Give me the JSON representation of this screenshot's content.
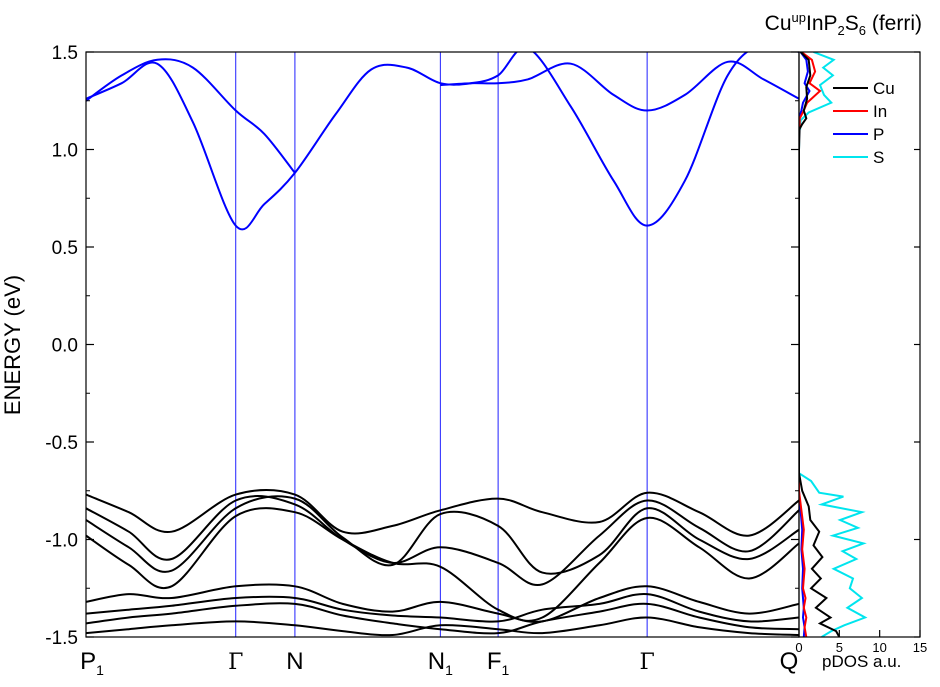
{
  "chart_data": [
    {
      "type": "line",
      "title_parts": {
        "pre": "Cu",
        "sup": "up",
        "mid": "InP",
        "sub1": "2",
        "mid2": "S",
        "sub2": "6",
        "post": " (ferri)"
      },
      "xlabel": "",
      "ylabel": "ENERGY (eV)",
      "ylim": [
        -1.5,
        1.5
      ],
      "yticks": [
        -1.5,
        -1.0,
        -0.5,
        0.0,
        0.5,
        1.0,
        1.5
      ],
      "ytick_labels": [
        "-1.5",
        "-1.0",
        "-0.5",
        "0.0",
        "0.5",
        "1.0",
        "1.5"
      ],
      "k_labels": [
        {
          "main": "P",
          "sub": "1",
          "pos": 0.0,
          "greek": false
        },
        {
          "main": "Γ",
          "sub": "",
          "pos": 0.21,
          "greek": true
        },
        {
          "main": "N",
          "sub": "",
          "pos": 0.293,
          "greek": false
        },
        {
          "main": "N",
          "sub": "1",
          "pos": 0.497,
          "greek": false
        },
        {
          "main": "F",
          "sub": "1",
          "pos": 0.578,
          "greek": false
        },
        {
          "main": "Γ",
          "sub": "",
          "pos": 0.787,
          "greek": true
        },
        {
          "main": "Q",
          "sub": "",
          "pos": 1.0,
          "greek": false
        }
      ],
      "conduction_band_color": "#0000ff",
      "valence_band_color": "#000000",
      "series": [
        {
          "band": "conduction",
          "x": [
            0.0,
            0.05,
            0.1,
            0.15,
            0.21,
            0.25,
            0.293,
            0.35,
            0.4,
            0.45,
            0.497,
            0.54,
            0.578,
            0.62,
            0.68,
            0.74,
            0.787,
            0.84,
            0.9,
            0.95,
            1.0
          ],
          "y": [
            1.26,
            1.34,
            1.44,
            1.14,
            0.61,
            0.72,
            0.88,
            1.18,
            1.41,
            1.42,
            1.34,
            1.34,
            1.38,
            1.52,
            1.22,
            0.84,
            0.61,
            0.84,
            1.38,
            1.54,
            1.5
          ]
        },
        {
          "band": "conduction",
          "x": [
            0.0,
            0.05,
            0.1,
            0.15,
            0.21,
            0.25,
            0.293
          ],
          "y": [
            1.25,
            1.38,
            1.46,
            1.42,
            1.2,
            1.08,
            0.88
          ]
        },
        {
          "band": "conduction",
          "x": [
            0.497,
            0.54,
            0.578,
            0.62,
            0.68,
            0.74,
            0.787,
            0.84,
            0.9,
            0.95,
            1.0
          ],
          "y": [
            1.33,
            1.34,
            1.34,
            1.36,
            1.44,
            1.28,
            1.2,
            1.28,
            1.45,
            1.36,
            1.26
          ]
        },
        {
          "band": "valence",
          "x": [
            0.0,
            0.06,
            0.12,
            0.21,
            0.293,
            0.36,
            0.43,
            0.497,
            0.578,
            0.64,
            0.72,
            0.787,
            0.86,
            0.93,
            1.0
          ],
          "y": [
            -0.77,
            -0.86,
            -0.96,
            -0.77,
            -0.77,
            -0.96,
            -0.93,
            -0.85,
            -0.79,
            -0.86,
            -0.91,
            -0.76,
            -0.86,
            -0.98,
            -0.8
          ]
        },
        {
          "band": "valence",
          "x": [
            0.0,
            0.06,
            0.12,
            0.21,
            0.293,
            0.36,
            0.43,
            0.497,
            0.578,
            0.64,
            0.72,
            0.787,
            0.86,
            0.93,
            1.0
          ],
          "y": [
            -0.84,
            -0.96,
            -1.1,
            -0.8,
            -0.82,
            -1.0,
            -1.12,
            -1.04,
            -1.12,
            -1.23,
            -0.98,
            -0.8,
            -0.94,
            -1.06,
            -0.85
          ]
        },
        {
          "band": "valence",
          "x": [
            0.0,
            0.06,
            0.12,
            0.21,
            0.293,
            0.36,
            0.43,
            0.497,
            0.578,
            0.64,
            0.72,
            0.787,
            0.86,
            0.93,
            1.0
          ],
          "y": [
            -0.9,
            -1.04,
            -1.16,
            -0.84,
            -0.79,
            -0.99,
            -1.13,
            -0.87,
            -0.93,
            -1.17,
            -1.08,
            -0.84,
            -1.0,
            -1.1,
            -0.95
          ]
        },
        {
          "band": "valence",
          "x": [
            0.0,
            0.06,
            0.12,
            0.21,
            0.293,
            0.36,
            0.43,
            0.497,
            0.578,
            0.64,
            0.72,
            0.787,
            0.86,
            0.93,
            1.0
          ],
          "y": [
            -0.98,
            -1.13,
            -1.24,
            -0.88,
            -0.86,
            -1.0,
            -1.12,
            -1.14,
            -1.36,
            -1.4,
            -1.12,
            -0.89,
            -1.04,
            -1.2,
            -1.02
          ]
        },
        {
          "band": "valence",
          "x": [
            0.0,
            0.06,
            0.12,
            0.21,
            0.293,
            0.36,
            0.43,
            0.497,
            0.578,
            0.64,
            0.72,
            0.787,
            0.86,
            0.93,
            1.0
          ],
          "y": [
            -1.32,
            -1.28,
            -1.3,
            -1.24,
            -1.24,
            -1.33,
            -1.37,
            -1.32,
            -1.38,
            -1.42,
            -1.3,
            -1.24,
            -1.32,
            -1.38,
            -1.33
          ]
        },
        {
          "band": "valence",
          "x": [
            0.0,
            0.06,
            0.12,
            0.21,
            0.293,
            0.36,
            0.43,
            0.497,
            0.578,
            0.64,
            0.72,
            0.787,
            0.86,
            0.93,
            1.0
          ],
          "y": [
            -1.38,
            -1.36,
            -1.34,
            -1.3,
            -1.3,
            -1.36,
            -1.39,
            -1.4,
            -1.42,
            -1.36,
            -1.33,
            -1.28,
            -1.37,
            -1.42,
            -1.4
          ]
        },
        {
          "band": "valence",
          "x": [
            0.0,
            0.06,
            0.12,
            0.21,
            0.293,
            0.36,
            0.43,
            0.497,
            0.578,
            0.64,
            0.72,
            0.787,
            0.86,
            0.93,
            1.0
          ],
          "y": [
            -1.43,
            -1.4,
            -1.38,
            -1.34,
            -1.33,
            -1.39,
            -1.43,
            -1.46,
            -1.48,
            -1.42,
            -1.37,
            -1.33,
            -1.4,
            -1.45,
            -1.46
          ]
        },
        {
          "band": "valence",
          "x": [
            0.0,
            0.06,
            0.12,
            0.21,
            0.293,
            0.36,
            0.43,
            0.497,
            0.578,
            0.64,
            0.72,
            0.787,
            0.86,
            0.93,
            1.0
          ],
          "y": [
            -1.48,
            -1.46,
            -1.44,
            -1.42,
            -1.44,
            -1.47,
            -1.49,
            -1.44,
            -1.46,
            -1.48,
            -1.44,
            -1.4,
            -1.45,
            -1.48,
            -1.49
          ]
        }
      ]
    },
    {
      "type": "line",
      "xlabel": "pDOS a.u.",
      "xlim": [
        0,
        15
      ],
      "xticks": [
        0,
        5,
        10,
        15
      ],
      "xtick_labels": [
        "0",
        "5",
        "10",
        "15"
      ],
      "ylim": [
        -1.5,
        1.5
      ],
      "legend_placement": "top-right",
      "series": [
        {
          "name": "Cu",
          "color": "#000000",
          "x": [
            0.2,
            1.2,
            1.4,
            0.9,
            1.0,
            0.6,
            0.9,
            0.4,
            0.0,
            0.0,
            0.0,
            0.0,
            0.0,
            0.0,
            0.4,
            1.2,
            1.4,
            2.5,
            1.8,
            2.9,
            1.6,
            2.7,
            1.5,
            3.4,
            2.1,
            3.9,
            2.6,
            4.6,
            5.0
          ],
          "y": [
            1.5,
            1.46,
            1.38,
            1.32,
            1.26,
            1.2,
            1.16,
            1.13,
            1.1,
            0.5,
            0.0,
            -0.5,
            -0.6,
            -0.66,
            -0.75,
            -0.83,
            -0.9,
            -0.96,
            -1.03,
            -1.09,
            -1.15,
            -1.2,
            -1.25,
            -1.3,
            -1.35,
            -1.4,
            -1.43,
            -1.47,
            -1.5
          ]
        },
        {
          "name": "In",
          "color": "#ff0000",
          "x": [
            0.3,
            1.6,
            2.0,
            1.3,
            2.6,
            1.0,
            0.6,
            0.1,
            0.0,
            0.0,
            0.0,
            0.0,
            0.0,
            0.3,
            0.6,
            0.4,
            0.7,
            0.5,
            0.8,
            0.6,
            0.9,
            0.7,
            0.9
          ],
          "y": [
            1.5,
            1.46,
            1.4,
            1.34,
            1.3,
            1.24,
            1.2,
            1.16,
            1.0,
            0.0,
            -0.5,
            -0.66,
            -0.75,
            -0.85,
            -0.95,
            -1.05,
            -1.15,
            -1.25,
            -1.3,
            -1.35,
            -1.4,
            -1.45,
            -1.5
          ]
        },
        {
          "name": "P",
          "color": "#0000ff",
          "x": [
            0.2,
            0.9,
            1.1,
            0.7,
            1.3,
            0.5,
            0.3,
            0.0,
            0.0,
            0.0,
            0.0,
            0.0,
            0.0,
            0.2,
            0.4,
            0.3,
            0.5,
            0.4,
            0.6,
            0.5,
            0.7,
            0.6
          ],
          "y": [
            1.5,
            1.46,
            1.4,
            1.34,
            1.3,
            1.24,
            1.2,
            1.16,
            1.0,
            0.0,
            -0.5,
            -0.66,
            -0.75,
            -0.85,
            -0.95,
            -1.05,
            -1.15,
            -1.25,
            -1.35,
            -1.4,
            -1.45,
            -1.5
          ]
        },
        {
          "name": "S",
          "color": "#00e5ee",
          "x": [
            1.8,
            4.3,
            3.0,
            4.2,
            2.6,
            3.1,
            4.0,
            1.2,
            0.2,
            0.0,
            0.0,
            0.0,
            0.0,
            0.0,
            1.5,
            2.5,
            5.5,
            2.8,
            7.8,
            5.1,
            7.3,
            4.2,
            8.0,
            5.4,
            7.1,
            4.3,
            6.7,
            6.3,
            7.8,
            6.0,
            8.2,
            5.6,
            4.0,
            2.8
          ],
          "y": [
            1.5,
            1.46,
            1.42,
            1.38,
            1.33,
            1.28,
            1.24,
            1.19,
            1.15,
            1.0,
            0.5,
            0.0,
            -0.5,
            -0.66,
            -0.7,
            -0.76,
            -0.78,
            -0.82,
            -0.86,
            -0.9,
            -0.94,
            -0.98,
            -1.02,
            -1.06,
            -1.1,
            -1.15,
            -1.2,
            -1.25,
            -1.3,
            -1.35,
            -1.4,
            -1.44,
            -1.47,
            -1.5
          ]
        }
      ]
    }
  ]
}
